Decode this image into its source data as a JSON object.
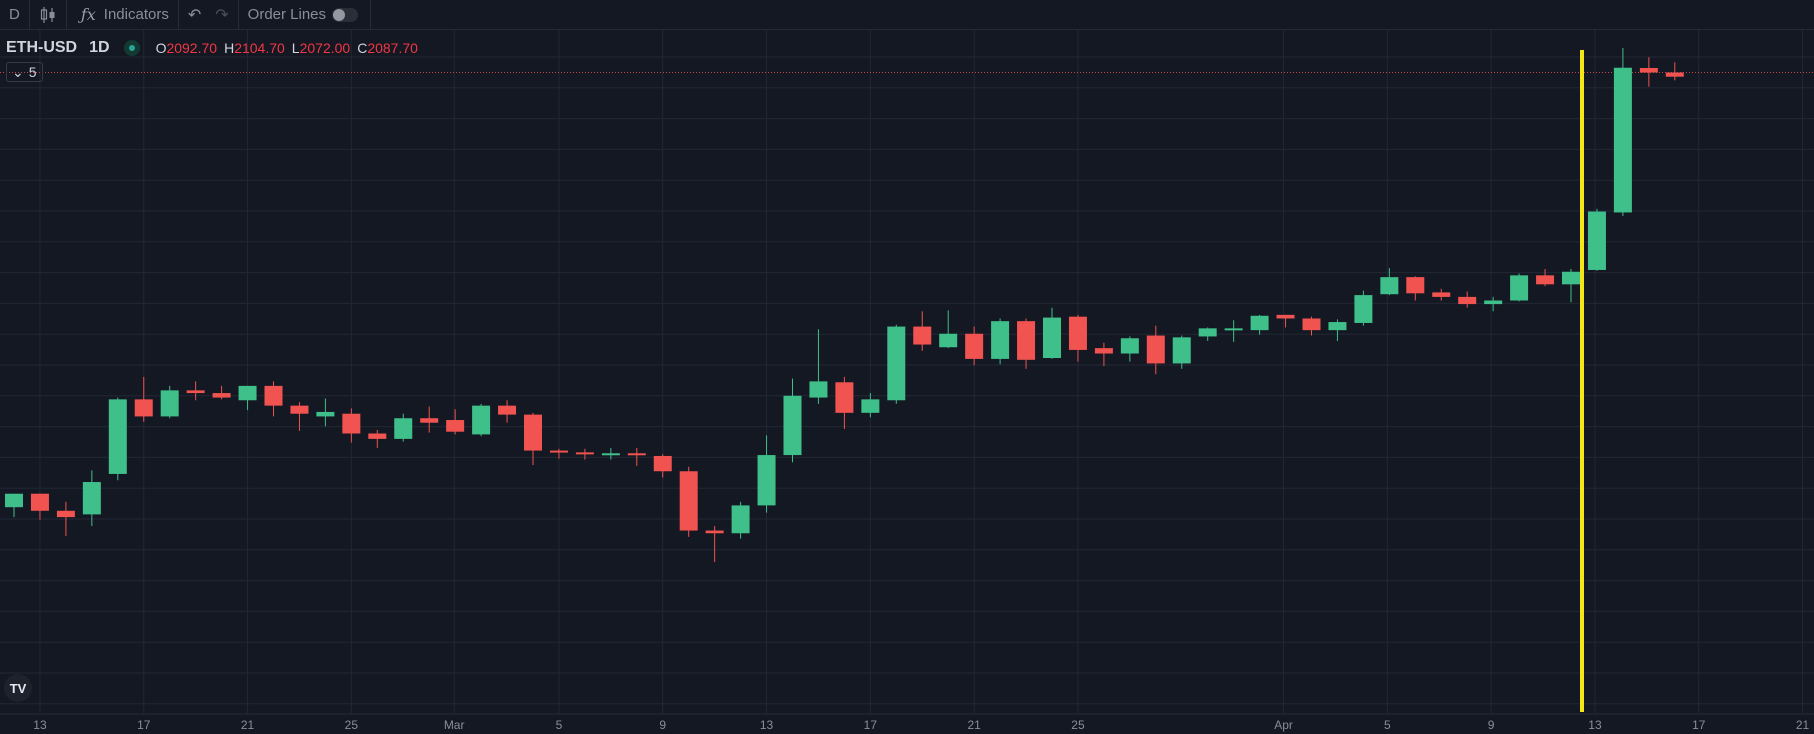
{
  "toolbar": {
    "interval_label": "D",
    "candles_icon": "candlestick-icon",
    "indicators_icon": "fx-icon",
    "indicators_label": "Indicators",
    "undo_icon": "undo-icon",
    "redo_icon": "redo-icon",
    "order_lines_label": "Order Lines",
    "order_lines_enabled": false
  },
  "legend": {
    "symbol": "ETH-USD",
    "interval": "1D",
    "ohlc": [
      {
        "key": "O",
        "value": "2092.70"
      },
      {
        "key": "H",
        "value": "2104.70"
      },
      {
        "key": "L",
        "value": "2072.00"
      },
      {
        "key": "C",
        "value": "2087.70"
      }
    ],
    "collapse_count": "5"
  },
  "colors": {
    "background": "#141822",
    "up": "#3fbf8a",
    "down": "#f05350",
    "grid": "#222735",
    "marker": "#f5e617",
    "price_line": "#f05350"
  },
  "chart_data": {
    "type": "candlestick",
    "symbol": "ETH-USD",
    "interval": "1D",
    "x_ticks": [
      "13",
      "17",
      "21",
      "25",
      "Mar",
      "5",
      "9",
      "13",
      "17",
      "21",
      "25",
      "Apr",
      "5",
      "9",
      "13",
      "17",
      "21"
    ],
    "ylim": [
      1385,
      2135
    ],
    "current_price_line": 2087.7,
    "highlighted_date": "Apr 13",
    "grid": true,
    "candles": [
      {
        "date": "Feb 12",
        "o": 1604,
        "h": 1617,
        "l": 1593,
        "c": 1619
      },
      {
        "date": "Feb 13",
        "o": 1619,
        "h": 1613,
        "l": 1590,
        "c": 1600
      },
      {
        "date": "Feb 14",
        "o": 1600,
        "h": 1610,
        "l": 1572,
        "c": 1593
      },
      {
        "date": "Feb 15",
        "o": 1596,
        "h": 1645,
        "l": 1583,
        "c": 1632
      },
      {
        "date": "Feb 16",
        "o": 1641,
        "h": 1726,
        "l": 1634,
        "c": 1724
      },
      {
        "date": "Feb 17",
        "o": 1724,
        "h": 1749,
        "l": 1699,
        "c": 1705
      },
      {
        "date": "Feb 18",
        "o": 1705,
        "h": 1739,
        "l": 1703,
        "c": 1734
      },
      {
        "date": "Feb 19",
        "o": 1734,
        "h": 1744,
        "l": 1723,
        "c": 1731
      },
      {
        "date": "Feb 20",
        "o": 1731,
        "h": 1739,
        "l": 1724,
        "c": 1726
      },
      {
        "date": "Feb 21",
        "o": 1723,
        "h": 1737,
        "l": 1712,
        "c": 1739
      },
      {
        "date": "Feb 22",
        "o": 1739,
        "h": 1744,
        "l": 1705,
        "c": 1717
      },
      {
        "date": "Feb 23",
        "o": 1717,
        "h": 1721,
        "l": 1689,
        "c": 1708
      },
      {
        "date": "Feb 24",
        "o": 1705,
        "h": 1725,
        "l": 1694,
        "c": 1710
      },
      {
        "date": "Feb 25",
        "o": 1708,
        "h": 1714,
        "l": 1676,
        "c": 1686
      },
      {
        "date": "Feb 26",
        "o": 1686,
        "h": 1690,
        "l": 1670,
        "c": 1680
      },
      {
        "date": "Feb 27",
        "o": 1680,
        "h": 1708,
        "l": 1677,
        "c": 1703
      },
      {
        "date": "Feb 28",
        "o": 1703,
        "h": 1716,
        "l": 1687,
        "c": 1698
      },
      {
        "date": "Mar 1",
        "o": 1701,
        "h": 1713,
        "l": 1685,
        "c": 1688
      },
      {
        "date": "Mar 2",
        "o": 1685,
        "h": 1719,
        "l": 1683,
        "c": 1717
      },
      {
        "date": "Mar 3",
        "o": 1717,
        "h": 1723,
        "l": 1698,
        "c": 1707
      },
      {
        "date": "Mar 4",
        "o": 1707,
        "h": 1709,
        "l": 1651,
        "c": 1667
      },
      {
        "date": "Mar 5",
        "o": 1667,
        "h": 1669,
        "l": 1658,
        "c": 1665
      },
      {
        "date": "Mar 6",
        "o": 1665,
        "h": 1669,
        "l": 1657,
        "c": 1664
      },
      {
        "date": "Mar 7",
        "o": 1663,
        "h": 1670,
        "l": 1657,
        "c": 1664
      },
      {
        "date": "Mar 8",
        "o": 1664,
        "h": 1670,
        "l": 1650,
        "c": 1663
      },
      {
        "date": "Mar 9",
        "o": 1661,
        "h": 1663,
        "l": 1637,
        "c": 1644
      },
      {
        "date": "Mar 10",
        "o": 1644,
        "h": 1649,
        "l": 1571,
        "c": 1578
      },
      {
        "date": "Mar 11",
        "o": 1578,
        "h": 1583,
        "l": 1543,
        "c": 1575
      },
      {
        "date": "Mar 12",
        "o": 1575,
        "h": 1610,
        "l": 1569,
        "c": 1606
      },
      {
        "date": "Mar 13",
        "o": 1606,
        "h": 1684,
        "l": 1598,
        "c": 1662
      },
      {
        "date": "Mar 14",
        "o": 1662,
        "h": 1747,
        "l": 1654,
        "c": 1728
      },
      {
        "date": "Mar 15",
        "o": 1726,
        "h": 1802,
        "l": 1719,
        "c": 1744
      },
      {
        "date": "Mar 16",
        "o": 1743,
        "h": 1749,
        "l": 1691,
        "c": 1709
      },
      {
        "date": "Mar 17",
        "o": 1709,
        "h": 1731,
        "l": 1704,
        "c": 1724
      },
      {
        "date": "Mar 18",
        "o": 1723,
        "h": 1807,
        "l": 1719,
        "c": 1805
      },
      {
        "date": "Mar 19",
        "o": 1805,
        "h": 1822,
        "l": 1778,
        "c": 1785
      },
      {
        "date": "Mar 20",
        "o": 1782,
        "h": 1823,
        "l": 1781,
        "c": 1797
      },
      {
        "date": "Mar 21",
        "o": 1797,
        "h": 1805,
        "l": 1762,
        "c": 1769
      },
      {
        "date": "Mar 22",
        "o": 1769,
        "h": 1814,
        "l": 1763,
        "c": 1811
      },
      {
        "date": "Mar 23",
        "o": 1811,
        "h": 1814,
        "l": 1758,
        "c": 1768
      },
      {
        "date": "Mar 24",
        "o": 1770,
        "h": 1826,
        "l": 1769,
        "c": 1815
      },
      {
        "date": "Mar 25",
        "o": 1816,
        "h": 1818,
        "l": 1766,
        "c": 1779
      },
      {
        "date": "Mar 26",
        "o": 1781,
        "h": 1787,
        "l": 1761,
        "c": 1775
      },
      {
        "date": "Mar 27",
        "o": 1775,
        "h": 1794,
        "l": 1766,
        "c": 1792
      },
      {
        "date": "Mar 28",
        "o": 1795,
        "h": 1806,
        "l": 1752,
        "c": 1764
      },
      {
        "date": "Mar 29",
        "o": 1764,
        "h": 1795,
        "l": 1758,
        "c": 1793
      },
      {
        "date": "Mar 30",
        "o": 1794,
        "h": 1804,
        "l": 1789,
        "c": 1803
      },
      {
        "date": "Mar 31",
        "o": 1803,
        "h": 1812,
        "l": 1788,
        "c": 1803
      },
      {
        "date": "Apr 1",
        "o": 1801,
        "h": 1818,
        "l": 1796,
        "c": 1817
      },
      {
        "date": "Apr 2",
        "o": 1818,
        "h": 1815,
        "l": 1804,
        "c": 1814
      },
      {
        "date": "Apr 3",
        "o": 1814,
        "h": 1816,
        "l": 1795,
        "c": 1801
      },
      {
        "date": "Apr 4",
        "o": 1801,
        "h": 1813,
        "l": 1789,
        "c": 1810
      },
      {
        "date": "Apr 5",
        "o": 1809,
        "h": 1845,
        "l": 1806,
        "c": 1840
      },
      {
        "date": "Apr 6",
        "o": 1841,
        "h": 1870,
        "l": 1840,
        "c": 1860
      },
      {
        "date": "Apr 7",
        "o": 1860,
        "h": 1861,
        "l": 1834,
        "c": 1842
      },
      {
        "date": "Apr 8",
        "o": 1843,
        "h": 1847,
        "l": 1834,
        "c": 1838
      },
      {
        "date": "Apr 9",
        "o": 1838,
        "h": 1844,
        "l": 1826,
        "c": 1830
      },
      {
        "date": "Apr 10",
        "o": 1830,
        "h": 1838,
        "l": 1822,
        "c": 1834
      },
      {
        "date": "Apr 11",
        "o": 1834,
        "h": 1864,
        "l": 1833,
        "c": 1862
      },
      {
        "date": "Apr 12",
        "o": 1862,
        "h": 1869,
        "l": 1850,
        "c": 1852
      },
      {
        "date": "Apr 13",
        "o": 1852,
        "h": 1869,
        "l": 1832,
        "c": 1866
      },
      {
        "date": "Apr 14",
        "o": 1868,
        "h": 1936,
        "l": 1867,
        "c": 1933
      },
      {
        "date": "Apr 15",
        "o": 1932,
        "h": 2115,
        "l": 1928,
        "c": 2093
      },
      {
        "date": "Apr 16",
        "o": 2092.7,
        "h": 2104.7,
        "l": 2072,
        "c": 2087.7
      },
      {
        "date": "Apr 17",
        "o": 2087.7,
        "h": 2099,
        "l": 2079,
        "c": 2083
      }
    ]
  }
}
